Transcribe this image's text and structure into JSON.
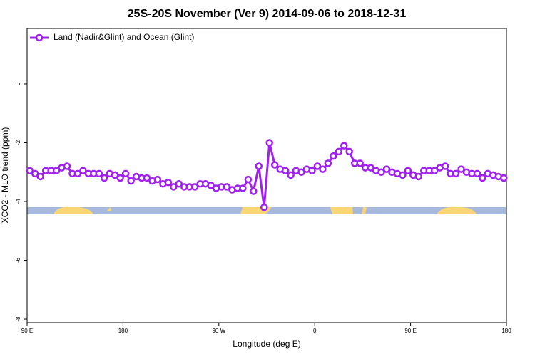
{
  "chart_data": {
    "type": "line",
    "title": "25S-20S November (Ver 9)   2014-09-06 to 2018-12-31",
    "x_label": "Longitude (deg E)",
    "y_label": "XCO2 - MLO trend (ppm)",
    "xlim": [
      90,
      540
    ],
    "xticks": [
      {
        "value": 90,
        "label": "90 E"
      },
      180,
      {
        "value": 270,
        "label": "90 W"
      },
      {
        "value": 360,
        "label": "0"
      },
      {
        "value": 450,
        "label": "90 E"
      },
      {
        "value": 540,
        "label": "180"
      }
    ],
    "ylim": [
      -8.12,
      1.89
    ],
    "yticks": [
      0,
      -2,
      -4,
      -6,
      -8
    ],
    "legend": "top-left",
    "x": [
      92.5,
      97.5,
      102.5,
      107.5,
      112.5,
      117.5,
      122.5,
      127.5,
      132.5,
      137.5,
      142.5,
      147.5,
      152.5,
      157.5,
      162.5,
      167.5,
      172.5,
      177.5,
      182.5,
      187.5,
      192.5,
      197.5,
      202.5,
      207.5,
      212.5,
      217.5,
      222.5,
      227.5,
      232.5,
      237.5,
      242.5,
      247.5,
      252.5,
      257.5,
      262.5,
      267.5,
      272.5,
      277.5,
      282.5,
      287.5,
      292.5,
      297.5,
      302.5,
      307.5,
      312.5,
      317.5,
      322.5,
      327.5,
      332.5,
      337.5,
      342.5,
      347.5,
      352.5,
      357.5,
      362.5,
      367.5,
      372.5,
      377.5,
      382.5,
      387.5,
      392.5,
      397.5,
      402.5,
      407.5,
      412.5,
      417.5,
      422.5,
      427.5,
      432.5,
      437.5,
      442.5,
      447.5,
      452.5,
      457.5,
      462.5,
      467.5,
      472.5,
      477.5,
      482.5,
      487.5,
      492.5,
      497.5,
      502.5,
      507.5,
      512.5,
      517.5,
      522.5,
      527.5,
      532.5,
      537.5
    ],
    "series": [
      {
        "name": "Land (Nadir&Glint) and Ocean (Glint)",
        "color": "#a020f0",
        "values": [
          -2.95,
          -3.05,
          -3.15,
          -2.95,
          -2.95,
          -2.95,
          -2.85,
          -2.8,
          -3.05,
          -3.05,
          -2.95,
          -3.05,
          -3.05,
          -3.05,
          -3.2,
          -3.05,
          -3.1,
          -3.2,
          -3.05,
          -3.3,
          -3.15,
          -3.2,
          -3.2,
          -3.3,
          -3.25,
          -3.4,
          -3.35,
          -3.5,
          -3.4,
          -3.5,
          -3.5,
          -3.5,
          -3.4,
          -3.4,
          -3.45,
          -3.55,
          -3.5,
          -3.5,
          -3.6,
          -3.55,
          -3.55,
          -3.25,
          -3.65,
          -2.8,
          -4.2,
          -2.0,
          -2.75,
          -2.9,
          -2.95,
          -3.1,
          -2.95,
          -3.0,
          -2.9,
          -2.95,
          -2.8,
          -2.9,
          -2.7,
          -2.45,
          -2.3,
          -2.1,
          -2.3,
          -2.7,
          -2.7,
          -2.85,
          -2.85,
          -2.95,
          -3.0,
          -2.9,
          -3.0,
          -3.05,
          -3.1,
          -2.95,
          -3.1,
          -3.15,
          -2.95,
          -2.95,
          -2.95,
          -2.85,
          -2.8,
          -3.05,
          -3.05,
          -2.9,
          -3.0,
          -3.05,
          -3.05,
          -3.2,
          -3.05,
          -3.1,
          -3.15,
          -3.2
        ]
      }
    ]
  }
}
